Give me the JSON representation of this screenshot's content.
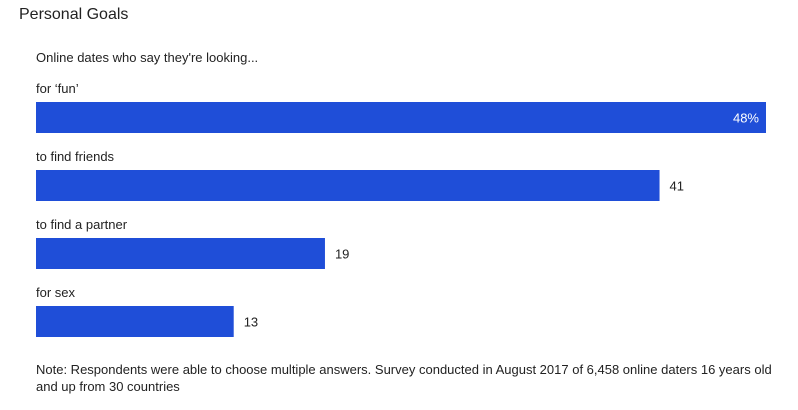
{
  "chart_data": {
    "type": "bar",
    "orientation": "horizontal",
    "title": "Personal Goals",
    "subtitle": "Online dates who say they're looking...",
    "categories": [
      "for ‘fun’",
      "to find friends",
      "to find a partner",
      "for sex"
    ],
    "values": [
      48,
      41,
      19,
      13
    ],
    "value_labels": [
      "48%",
      "41",
      "19",
      "13"
    ],
    "unit": "%",
    "xlim": [
      0,
      48
    ],
    "grid": false,
    "legend": "none",
    "bar_color": "#1f4ed8",
    "note": "Note: Respondents were able to choose multiple answers. Survey conducted in August 2017 of 6,458 online daters 16 years old and up from 30 countries"
  }
}
